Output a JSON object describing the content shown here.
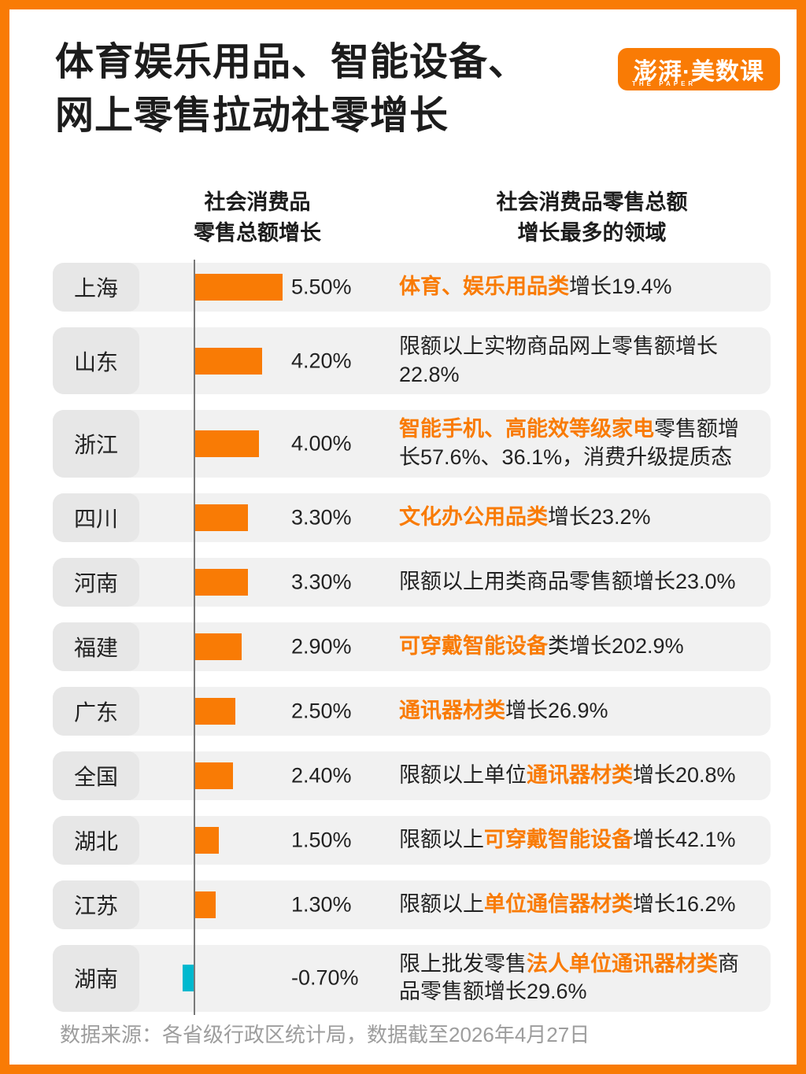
{
  "title": {
    "line1": "体育娱乐用品、智能设备、",
    "line2": "网上零售拉动社零增长"
  },
  "logo": {
    "main": "澎湃·美数课",
    "sub": "THE PAPER"
  },
  "columns": {
    "left_header": "社会消费品\n零售总额增长",
    "right_header": "社会消费品零售总额\n增长最多的领域"
  },
  "footer": {
    "source": "数据来源：各省级行政区统计局，数据截至2026年4月27日"
  },
  "colors": {
    "orange": "#F97B05",
    "cyan": "#00B9CF",
    "row_bg": "#F1F1F1",
    "pill_bg": "#E7E7E7"
  },
  "chart_data": {
    "type": "bar",
    "orientation": "horizontal",
    "unit": "percent",
    "xlim": [
      -0.7,
      5.5
    ],
    "categories": [
      "上海",
      "山东",
      "浙江",
      "四川",
      "河南",
      "福建",
      "广东",
      "全国",
      "湖北",
      "江苏",
      "湖南"
    ],
    "values": [
      5.5,
      4.2,
      4.0,
      3.3,
      3.3,
      2.9,
      2.5,
      2.4,
      1.5,
      1.3,
      -0.7
    ],
    "rows": [
      {
        "region": "上海",
        "value": 5.5,
        "value_label": "5.50%",
        "desc": [
          {
            "t": "体育、娱乐用品类",
            "hl": true
          },
          {
            "t": "增长19.4%",
            "hl": false
          }
        ]
      },
      {
        "region": "山东",
        "value": 4.2,
        "value_label": "4.20%",
        "desc": [
          {
            "t": "限额以上实物商品网上零售额增长22.8%",
            "hl": false
          }
        ]
      },
      {
        "region": "浙江",
        "value": 4.0,
        "value_label": "4.00%",
        "desc": [
          {
            "t": "智能手机、高能效等级家电",
            "hl": true
          },
          {
            "t": "零售额增长57.6%、36.1%，消费升级提质态",
            "hl": false
          }
        ]
      },
      {
        "region": "四川",
        "value": 3.3,
        "value_label": "3.30%",
        "desc": [
          {
            "t": "文化办公用品类",
            "hl": true
          },
          {
            "t": "增长23.2%",
            "hl": false
          }
        ]
      },
      {
        "region": "河南",
        "value": 3.3,
        "value_label": "3.30%",
        "desc": [
          {
            "t": "限额以上用类商品零售额增长23.0%",
            "hl": false
          }
        ]
      },
      {
        "region": "福建",
        "value": 2.9,
        "value_label": "2.90%",
        "desc": [
          {
            "t": "可穿戴智能设备",
            "hl": true
          },
          {
            "t": "类增长202.9%",
            "hl": false
          }
        ]
      },
      {
        "region": "广东",
        "value": 2.5,
        "value_label": "2.50%",
        "desc": [
          {
            "t": "通讯器材类",
            "hl": true
          },
          {
            "t": "增长26.9%",
            "hl": false
          }
        ]
      },
      {
        "region": "全国",
        "value": 2.4,
        "value_label": "2.40%",
        "desc": [
          {
            "t": "限额以上单位",
            "hl": false
          },
          {
            "t": "通讯器材类",
            "hl": true
          },
          {
            "t": "增长20.8%",
            "hl": false
          }
        ]
      },
      {
        "region": "湖北",
        "value": 1.5,
        "value_label": "1.50%",
        "desc": [
          {
            "t": "限额以上",
            "hl": false
          },
          {
            "t": "可穿戴智能设备",
            "hl": true
          },
          {
            "t": "增长42.1%",
            "hl": false
          }
        ]
      },
      {
        "region": "江苏",
        "value": 1.3,
        "value_label": "1.30%",
        "desc": [
          {
            "t": "限额以上",
            "hl": false
          },
          {
            "t": "单位通信器材类",
            "hl": true
          },
          {
            "t": "增长16.2%",
            "hl": false
          }
        ]
      },
      {
        "region": "湖南",
        "value": -0.7,
        "value_label": "-0.70%",
        "desc": [
          {
            "t": "限上批发零售",
            "hl": false
          },
          {
            "t": "法人单位通讯器材类",
            "hl": true
          },
          {
            "t": "商品零售额增长29.6%",
            "hl": false
          }
        ]
      }
    ]
  }
}
